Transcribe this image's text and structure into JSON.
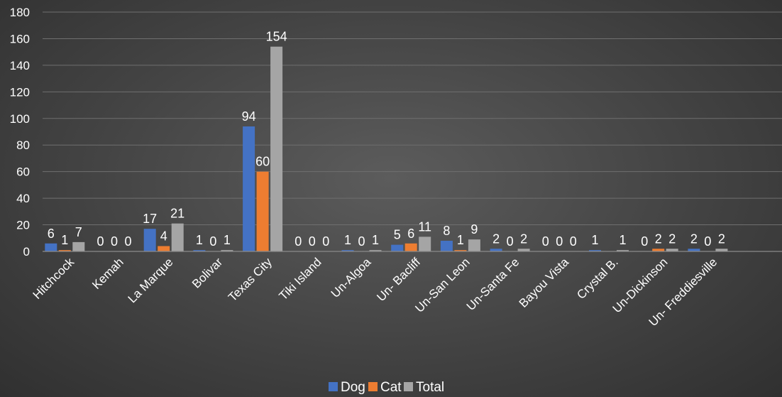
{
  "chart_data": {
    "type": "bar",
    "categories": [
      "Hitchcock",
      "Kemah",
      "La Marque",
      "Bolivar",
      "Texas City",
      "Tiki Island",
      "Un-Algoa",
      "Un- Bacliff",
      "Un-San Leon",
      "Un-Santa Fe",
      "Bayou Vista",
      "Crystal B.",
      "Un-Dickinson",
      "Un- Freddiesville"
    ],
    "series": [
      {
        "name": "Dog",
        "color": "#4472c4",
        "values": [
          6,
          0,
          17,
          1,
          94,
          0,
          1,
          5,
          8,
          2,
          0,
          1,
          0,
          2
        ],
        "labels": [
          "6",
          "0",
          "17",
          "1",
          "94",
          "0",
          "1",
          "5",
          "8",
          "2",
          "0",
          "1",
          "0",
          "2"
        ]
      },
      {
        "name": "Cat",
        "color": "#ed7d31",
        "values": [
          1,
          0,
          4,
          0,
          60,
          0,
          0,
          6,
          1,
          0,
          0,
          0,
          2,
          0
        ],
        "labels": [
          "1",
          "0",
          "4",
          "0",
          "60",
          "0",
          "0",
          "6",
          "1",
          "0",
          "0",
          "",
          "2",
          "0"
        ]
      },
      {
        "name": "Total",
        "color": "#a5a5a5",
        "values": [
          7,
          0,
          21,
          1,
          154,
          0,
          1,
          11,
          9,
          2,
          0,
          1,
          2,
          2
        ],
        "labels": [
          "7",
          "0",
          "21",
          "1",
          "154",
          "0",
          "1",
          "11",
          "9",
          "2",
          "0",
          "1",
          "2",
          "2"
        ]
      }
    ],
    "yticks": [
      "0",
      "20",
      "40",
      "60",
      "80",
      "100",
      "120",
      "140",
      "160",
      "180"
    ],
    "ylim": [
      0,
      180
    ],
    "gridlines": true,
    "legend_position": "bottom",
    "title": "",
    "xlabel": "",
    "ylabel": ""
  }
}
